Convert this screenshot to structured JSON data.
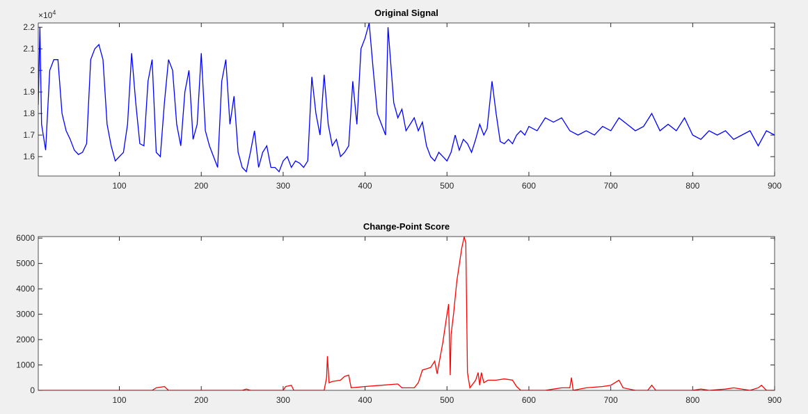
{
  "chart_data": [
    {
      "type": "line",
      "title": "Original Signal",
      "color": "#0000ff",
      "y_exponent": {
        "base": "×10",
        "power": "4"
      },
      "x": [
        1,
        3,
        5,
        10,
        15,
        20,
        25,
        30,
        35,
        40,
        45,
        50,
        55,
        60,
        65,
        70,
        75,
        80,
        85,
        90,
        95,
        100,
        105,
        110,
        115,
        120,
        125,
        130,
        135,
        140,
        145,
        150,
        155,
        160,
        165,
        170,
        175,
        180,
        185,
        190,
        195,
        200,
        205,
        210,
        215,
        220,
        225,
        230,
        235,
        240,
        245,
        250,
        255,
        260,
        265,
        270,
        275,
        280,
        285,
        290,
        295,
        300,
        305,
        310,
        315,
        320,
        325,
        330,
        335,
        340,
        345,
        350,
        355,
        360,
        365,
        370,
        375,
        380,
        385,
        390,
        395,
        400,
        405,
        410,
        415,
        420,
        425,
        428,
        435,
        440,
        445,
        450,
        455,
        460,
        465,
        470,
        475,
        480,
        485,
        490,
        495,
        500,
        505,
        510,
        515,
        520,
        525,
        530,
        535,
        540,
        545,
        549,
        555,
        560,
        565,
        570,
        575,
        580,
        585,
        590,
        595,
        600,
        610,
        620,
        630,
        640,
        650,
        660,
        670,
        680,
        690,
        700,
        710,
        720,
        730,
        740,
        750,
        760,
        770,
        780,
        790,
        800,
        810,
        820,
        830,
        840,
        850,
        860,
        870,
        880,
        890,
        900
      ],
      "values": [
        18400,
        22000,
        17500,
        16300,
        20000,
        20500,
        20500,
        18000,
        17200,
        16800,
        16300,
        16100,
        16200,
        16600,
        20500,
        21000,
        21200,
        20500,
        17500,
        16500,
        15800,
        16000,
        16200,
        17500,
        20800,
        18500,
        16600,
        16500,
        19500,
        20500,
        16200,
        16000,
        18500,
        20500,
        20000,
        17500,
        16500,
        19000,
        20000,
        16800,
        17500,
        20800,
        17200,
        16500,
        16000,
        15500,
        19500,
        20500,
        17500,
        18800,
        16200,
        15500,
        15300,
        16200,
        17200,
        15500,
        16200,
        16500,
        15500,
        15500,
        15300,
        15800,
        16000,
        15500,
        15800,
        15700,
        15500,
        15800,
        19700,
        18000,
        17000,
        19800,
        17500,
        16500,
        16800,
        16000,
        16200,
        16500,
        19500,
        17500,
        21000,
        21500,
        22200,
        20000,
        18000,
        17500,
        17000,
        22000,
        18500,
        17800,
        18200,
        17200,
        17500,
        17800,
        17200,
        17600,
        16500,
        16000,
        15800,
        16200,
        16000,
        15800,
        16200,
        17000,
        16300,
        16800,
        16600,
        16200,
        16800,
        17500,
        17000,
        17300,
        19500,
        18000,
        16700,
        16600,
        16800,
        16600,
        17000,
        17200,
        17000,
        17400,
        17200,
        17800,
        17600,
        17800,
        17200,
        17000,
        17200,
        17000,
        17400,
        17200,
        17800,
        17500,
        17200,
        17400,
        18000,
        17200,
        17500,
        17200,
        17800,
        17000,
        16800,
        17200,
        17000,
        17200,
        16800,
        17000,
        17200,
        16500,
        17200,
        17000
      ],
      "xlim": [
        1,
        900
      ],
      "xticks": [
        100,
        200,
        300,
        400,
        500,
        600,
        700,
        800,
        900
      ],
      "ylim": [
        15100,
        22200
      ],
      "yticks": [
        {
          "value": 16000,
          "label": "1.6"
        },
        {
          "value": 17000,
          "label": "1.7"
        },
        {
          "value": 18000,
          "label": "1.8"
        },
        {
          "value": 19000,
          "label": "1.9"
        },
        {
          "value": 20000,
          "label": "2"
        },
        {
          "value": 21000,
          "label": "2.1"
        },
        {
          "value": 22000,
          "label": "2.2"
        }
      ]
    },
    {
      "type": "line",
      "title": "Change-Point Score",
      "color": "#ff0000",
      "x": [
        1,
        140,
        145,
        155,
        160,
        250,
        255,
        260,
        300,
        303,
        310,
        313,
        350,
        353,
        354,
        356,
        360,
        370,
        375,
        380,
        383,
        400,
        420,
        440,
        445,
        460,
        465,
        470,
        475,
        480,
        485,
        488,
        495,
        500,
        502,
        504,
        505,
        508,
        512,
        518,
        521,
        523,
        525,
        528,
        535,
        538,
        540,
        542,
        545,
        550,
        560,
        570,
        580,
        585,
        590,
        620,
        630,
        640,
        650,
        652,
        654,
        670,
        690,
        700,
        710,
        715,
        730,
        745,
        750,
        755,
        800,
        810,
        820,
        840,
        850,
        870,
        880,
        884,
        890,
        900
      ],
      "values": [
        0,
        0,
        100,
        150,
        0,
        0,
        50,
        0,
        0,
        150,
        200,
        0,
        0,
        500,
        1350,
        300,
        350,
        400,
        550,
        600,
        100,
        150,
        200,
        250,
        100,
        100,
        300,
        800,
        850,
        900,
        1150,
        650,
        1900,
        3000,
        3400,
        600,
        2200,
        3000,
        4300,
        5600,
        6050,
        5800,
        700,
        100,
        400,
        700,
        200,
        700,
        300,
        400,
        400,
        450,
        400,
        150,
        0,
        0,
        50,
        100,
        100,
        500,
        0,
        100,
        150,
        200,
        400,
        100,
        0,
        0,
        200,
        0,
        0,
        50,
        0,
        50,
        100,
        0,
        100,
        200,
        0,
        0
      ],
      "xlim": [
        1,
        900
      ],
      "xticks": [
        100,
        200,
        300,
        400,
        500,
        600,
        700,
        800,
        900
      ],
      "ylim": [
        0,
        6060
      ],
      "yticks": [
        0,
        1000,
        2000,
        3000,
        4000,
        5000,
        6000
      ]
    }
  ]
}
